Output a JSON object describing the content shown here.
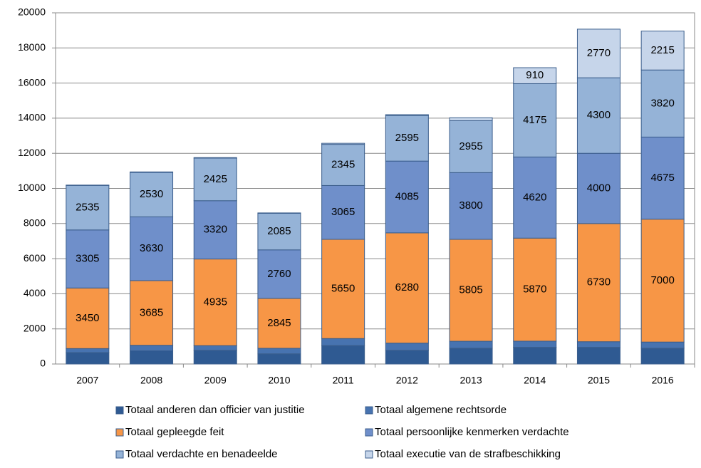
{
  "chart_data": {
    "type": "stacked_bar",
    "categories": [
      "2007",
      "2008",
      "2009",
      "2010",
      "2011",
      "2012",
      "2013",
      "2014",
      "2015",
      "2016"
    ],
    "series": [
      {
        "name": "Totaal anderen dan officier van justitie",
        "color": "#2f5a92",
        "values": [
          650,
          750,
          780,
          580,
          1050,
          780,
          900,
          950,
          950,
          900
        ]
      },
      {
        "name": "Totaal algemene rechtsorde",
        "color": "#4773b0",
        "values": [
          230,
          315,
          265,
          315,
          400,
          410,
          395,
          350,
          320,
          350
        ]
      },
      {
        "name": "Totaal gepleegde feit",
        "color": "#f79646",
        "values": [
          3450,
          3685,
          4935,
          2845,
          5650,
          6280,
          5805,
          5870,
          6730,
          7000
        ],
        "show_labels": true
      },
      {
        "name": "Totaal persoonlijke kenmerken verdachte",
        "color": "#6f8fca",
        "values": [
          3305,
          3630,
          3320,
          2760,
          3065,
          4085,
          3800,
          4620,
          4000,
          4675
        ],
        "show_labels": true
      },
      {
        "name": "Totaal verdachte en benadeelde",
        "color": "#95b3d7",
        "values": [
          2535,
          2530,
          2425,
          2085,
          2345,
          2595,
          2955,
          4175,
          4300,
          3820
        ],
        "show_labels": true
      },
      {
        "name": "Totaal executie van de strafbeschikking",
        "color": "#c6d5ea",
        "values": [
          20,
          30,
          30,
          20,
          60,
          50,
          170,
          910,
          2770,
          2215
        ],
        "value_labels": [
          null,
          null,
          null,
          null,
          null,
          null,
          null,
          "910",
          "2770",
          "2215"
        ]
      }
    ],
    "ylim": [
      0,
      20000
    ],
    "yticks": [
      0,
      2000,
      4000,
      6000,
      8000,
      10000,
      12000,
      14000,
      16000,
      18000,
      20000
    ],
    "grid": true
  }
}
